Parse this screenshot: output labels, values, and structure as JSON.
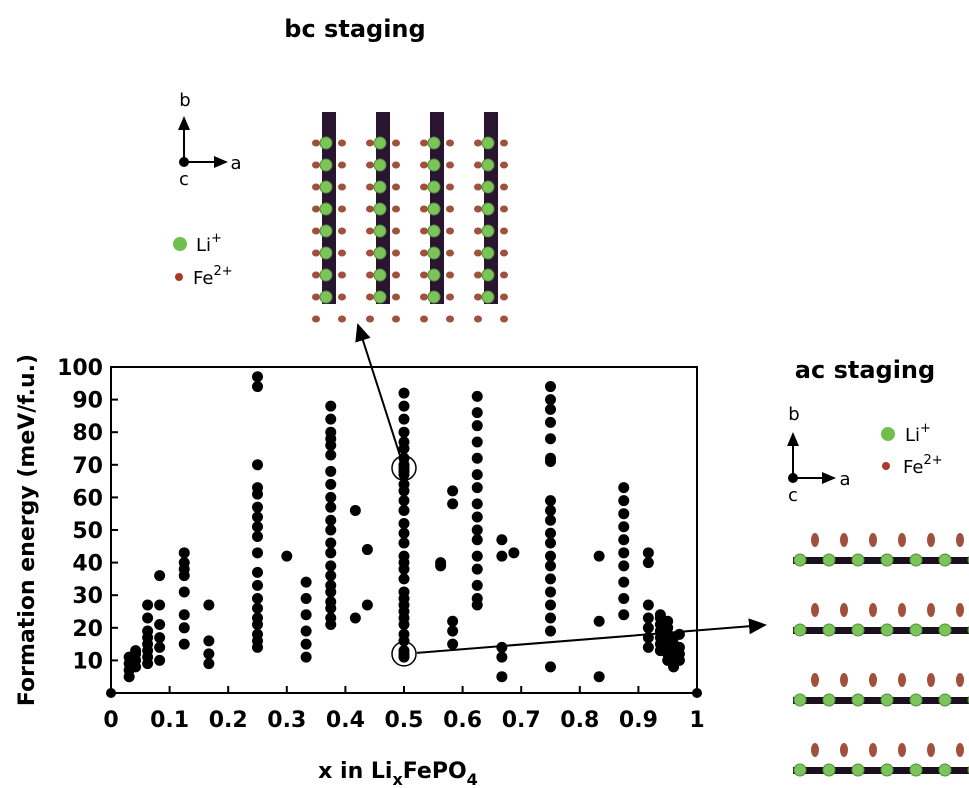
{
  "chart_data": {
    "type": "scatter",
    "ylabel": "Formation energy (meV/f.u.)",
    "xlabel": {
      "text": "x in Li",
      "sub": "x",
      "text2": "FePO",
      "sub2": "4"
    },
    "xlim": [
      0,
      1
    ],
    "ylim": [
      0,
      100
    ],
    "xticks": [
      0,
      0.1,
      0.2,
      0.3,
      0.4,
      0.5,
      0.6,
      0.7,
      0.8,
      0.9,
      1
    ],
    "yticks": [
      10,
      20,
      30,
      40,
      50,
      60,
      70,
      80,
      90,
      100
    ],
    "color": "#000000",
    "columns": [
      {
        "x": 0.031,
        "values": [
          5,
          7,
          9,
          11
        ]
      },
      {
        "x": 0.042,
        "values": [
          8,
          10,
          12,
          13
        ]
      },
      {
        "x": 0.0625,
        "values": [
          9,
          11,
          13,
          15,
          17,
          19,
          23,
          27
        ]
      },
      {
        "x": 0.083,
        "values": [
          10,
          14,
          17,
          21,
          27,
          36
        ]
      },
      {
        "x": 0.125,
        "values": [
          15,
          20,
          24,
          31,
          36,
          38,
          40,
          43
        ]
      },
      {
        "x": 0.167,
        "values": [
          9,
          12,
          16,
          27
        ]
      },
      {
        "x": 0.25,
        "values": [
          14,
          16,
          18,
          21,
          23,
          26,
          29,
          33,
          37,
          43,
          48,
          51,
          54,
          57,
          61,
          63,
          70,
          94,
          97
        ]
      },
      {
        "x": 0.3,
        "values": [
          42
        ]
      },
      {
        "x": 0.333,
        "values": [
          11,
          15,
          19,
          24,
          29,
          34
        ]
      },
      {
        "x": 0.375,
        "values": [
          21,
          23,
          26,
          28,
          31,
          33,
          36,
          39,
          43,
          46,
          50,
          53,
          57,
          60,
          64,
          68,
          73,
          76,
          78,
          80,
          84,
          88
        ]
      },
      {
        "x": 0.417,
        "values": [
          23,
          56
        ]
      },
      {
        "x": 0.4375,
        "values": [
          27,
          44
        ]
      },
      {
        "x": 0.5,
        "values": [
          11,
          12,
          13,
          16,
          18,
          21,
          23,
          25,
          27,
          29,
          31,
          35,
          38,
          40,
          42,
          46,
          49,
          52,
          56,
          59,
          62,
          64,
          67,
          68,
          69,
          70,
          72,
          75,
          77,
          80,
          84,
          88,
          92
        ]
      },
      {
        "x": 0.5625,
        "values": [
          39,
          40
        ]
      },
      {
        "x": 0.583,
        "values": [
          15,
          19,
          22,
          58,
          62
        ]
      },
      {
        "x": 0.625,
        "values": [
          27,
          29,
          33,
          38,
          42,
          47,
          50,
          54,
          58,
          63,
          67,
          72,
          77,
          82,
          86,
          91
        ]
      },
      {
        "x": 0.667,
        "values": [
          5,
          11,
          14,
          42,
          47
        ]
      },
      {
        "x": 0.6875,
        "values": [
          43
        ]
      },
      {
        "x": 0.75,
        "values": [
          8,
          19,
          23,
          27,
          31,
          35,
          39,
          42,
          46,
          49,
          53,
          56,
          59,
          71,
          72,
          78,
          83,
          87,
          90,
          94
        ]
      },
      {
        "x": 0.833,
        "values": [
          5,
          22,
          42
        ]
      },
      {
        "x": 0.875,
        "values": [
          24,
          29,
          34,
          39,
          43,
          47,
          51,
          55,
          59,
          63
        ]
      },
      {
        "x": 0.917,
        "values": [
          14,
          17,
          20,
          23,
          27,
          40,
          43
        ]
      },
      {
        "x": 0.9375,
        "values": [
          13,
          15,
          17,
          19,
          21,
          23,
          24
        ]
      },
      {
        "x": 0.95,
        "values": [
          10,
          12,
          14,
          16,
          18,
          20,
          22
        ]
      },
      {
        "x": 0.96,
        "values": [
          8,
          10,
          13,
          15,
          17
        ]
      },
      {
        "x": 0.97,
        "values": [
          10,
          12,
          14,
          18
        ]
      }
    ],
    "highlights": [
      {
        "x": 0.5,
        "y": 69
      },
      {
        "x": 0.5,
        "y": 12
      }
    ]
  },
  "insets": {
    "bc": {
      "title": "bc staging",
      "axis_b": "b",
      "axis_a": "a",
      "axis_c": "c",
      "li": "Li",
      "li_sup": "+",
      "fe": "Fe",
      "fe_sup": "2+"
    },
    "ac": {
      "title": "ac staging",
      "axis_b": "b",
      "axis_a": "a",
      "axis_c": "c",
      "li": "Li",
      "li_sup": "+",
      "fe": "Fe",
      "fe_sup": "2+"
    }
  }
}
